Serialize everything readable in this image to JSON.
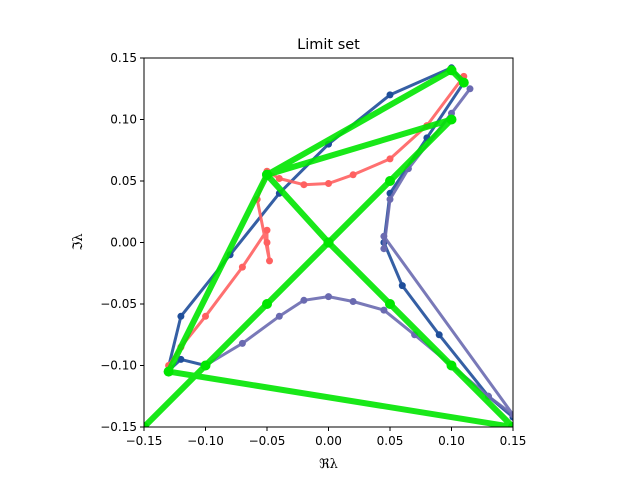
{
  "chart_data": {
    "type": "scatter",
    "title": "Limit set",
    "xlabel": "ℜλ",
    "ylabel": "ℑλ",
    "xlim": [
      -0.15,
      0.15
    ],
    "ylim": [
      -0.15,
      0.15
    ],
    "x_ticks": [
      -0.15,
      -0.1,
      -0.05,
      0.0,
      0.05,
      0.1,
      0.15
    ],
    "y_ticks": [
      -0.15,
      -0.1,
      -0.05,
      0.0,
      0.05,
      0.1,
      0.15
    ],
    "x_tick_labels": [
      "−0.15",
      "−0.10",
      "−0.05",
      "0.00",
      "0.05",
      "0.10",
      "0.15"
    ],
    "y_tick_labels": [
      "−0.15",
      "−0.10",
      "−0.05",
      "0.00",
      "0.05",
      "0.10",
      "0.15"
    ],
    "grid": false,
    "series": [
      {
        "color": "#1f4e9a",
        "points": [
          [
            -0.1,
            -0.1
          ],
          [
            -0.12,
            -0.095
          ],
          [
            -0.131,
            -0.105
          ],
          [
            -0.12,
            -0.06
          ],
          [
            -0.08,
            -0.01
          ],
          [
            -0.04,
            0.04
          ],
          [
            0.0,
            0.08
          ],
          [
            0.05,
            0.12
          ],
          [
            0.1,
            0.142
          ],
          [
            0.11,
            0.13
          ],
          [
            0.08,
            0.085
          ],
          [
            0.05,
            0.04
          ],
          [
            0.045,
            0.0
          ],
          [
            0.06,
            -0.035
          ],
          [
            0.09,
            -0.075
          ],
          [
            0.13,
            -0.125
          ],
          [
            0.15,
            -0.142
          ]
        ]
      },
      {
        "color": "#6a6ab0",
        "points": [
          [
            -0.1,
            -0.1
          ],
          [
            -0.07,
            -0.082
          ],
          [
            -0.04,
            -0.06
          ],
          [
            -0.02,
            -0.047
          ],
          [
            0.0,
            -0.044
          ],
          [
            0.02,
            -0.048
          ],
          [
            0.045,
            -0.055
          ],
          [
            0.07,
            -0.075
          ],
          [
            0.1,
            -0.1
          ],
          [
            0.13,
            -0.125
          ],
          [
            0.15,
            -0.14
          ],
          [
            0.045,
            0.005
          ],
          [
            0.045,
            -0.005
          ],
          [
            0.05,
            0.035
          ],
          [
            0.065,
            0.06
          ],
          [
            0.1,
            0.105
          ],
          [
            0.115,
            0.125
          ]
        ]
      },
      {
        "color": "#ff6060",
        "points": [
          [
            -0.13,
            -0.1
          ],
          [
            -0.12,
            -0.085
          ],
          [
            -0.1,
            -0.06
          ],
          [
            -0.07,
            -0.02
          ],
          [
            -0.05,
            0.01
          ],
          [
            -0.05,
            0.0
          ],
          [
            -0.048,
            -0.015
          ],
          [
            -0.058,
            0.035
          ],
          [
            -0.05,
            0.058
          ],
          [
            -0.04,
            0.052
          ],
          [
            -0.02,
            0.047
          ],
          [
            0.0,
            0.048
          ],
          [
            0.02,
            0.055
          ],
          [
            0.05,
            0.068
          ],
          [
            0.08,
            0.095
          ],
          [
            0.11,
            0.135
          ]
        ]
      },
      {
        "color": "#00e600",
        "points": [
          [
            -0.15,
            -0.15
          ],
          [
            -0.1,
            -0.1
          ],
          [
            -0.05,
            -0.05
          ],
          [
            0.0,
            0.0
          ],
          [
            0.05,
            0.05
          ],
          [
            0.1,
            0.1
          ],
          [
            -0.05,
            0.055
          ],
          [
            0.0,
            0.0
          ],
          [
            0.05,
            -0.05
          ],
          [
            0.1,
            -0.1
          ],
          [
            0.15,
            -0.15
          ],
          [
            -0.13,
            -0.105
          ],
          [
            -0.05,
            0.055
          ],
          [
            0.1,
            0.14
          ],
          [
            0.11,
            0.13
          ]
        ]
      }
    ]
  }
}
